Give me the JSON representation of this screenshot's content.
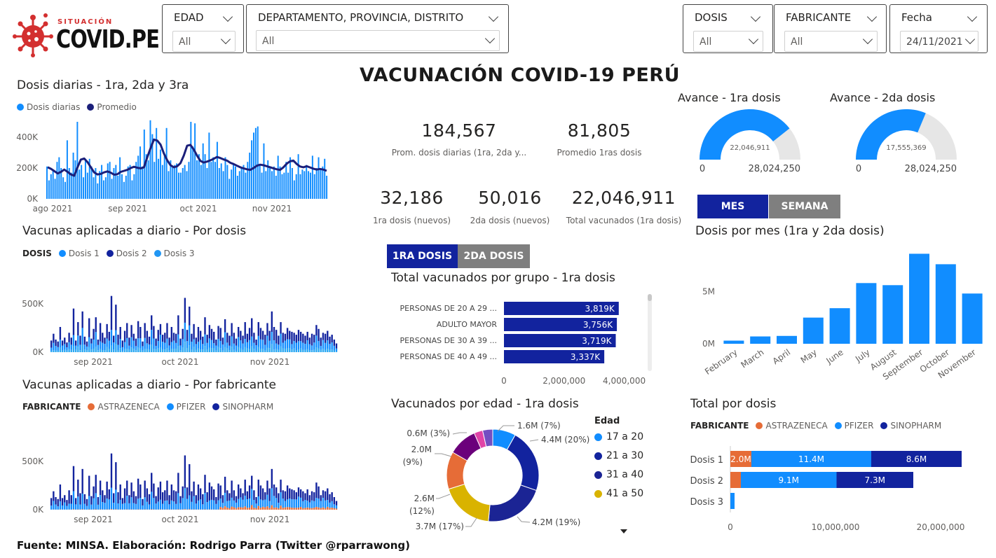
{
  "logo": {
    "small": "SITUACIÓN",
    "big": "COVID.PE"
  },
  "slicers": {
    "edad": {
      "title": "EDAD",
      "value": "All"
    },
    "ubicacion": {
      "title": "DEPARTAMENTO, PROVINCIA, DISTRITO",
      "value": "All"
    },
    "dosis": {
      "title": "DOSIS",
      "value": "All"
    },
    "fabricante": {
      "title": "FABRICANTE",
      "value": "All"
    },
    "fecha": {
      "title": "Fecha",
      "value": "24/11/2021"
    }
  },
  "main_title": "VACUNACIÓN COVID-19 PERÚ",
  "kpis": {
    "prom_dosis": {
      "value": "184,567",
      "label": "Prom. dosis diarias (1ra, 2da y..."
    },
    "prom_1ras": {
      "value": "81,805",
      "label": "Promedio 1ras dosis"
    },
    "primera_nuevos": {
      "value": "32,186",
      "label": "1ra dosis (nuevos)"
    },
    "segunda_nuevos": {
      "value": "50,016",
      "label": "2da dosis (nuevos)"
    },
    "total_vacunados": {
      "value": "22,046,911",
      "label": "Total vacunados (1ra dosis)"
    }
  },
  "gauges": {
    "primera": {
      "title": "Avance - 1ra dosis",
      "value": "22,046,911",
      "min": "0",
      "max": "28,024,250",
      "fraction": 0.787,
      "color": "#118DFF"
    },
    "segunda": {
      "title": "Avance - 2da dosis",
      "value": "17,555,369",
      "min": "0",
      "max": "28,024,250",
      "fraction": 0.626,
      "color": "#118DFF"
    }
  },
  "toggles": {
    "mes": "MES",
    "semana": "SEMANA",
    "primera": "1RA DOSIS",
    "segunda": "2DA DOSIS"
  },
  "colors": {
    "light_blue": "#118DFF",
    "dark_blue": "#12239E",
    "navy": "#1B1F7A",
    "orange": "#E66C37",
    "purple": "#6B007B",
    "magenta": "#E044A7",
    "violet": "#744EC2",
    "yellow": "#D9B300",
    "dark_brown": "#5A2D2D",
    "gray_btn": "#7F7F7F",
    "sky": "#2196F3"
  },
  "footer": "Fuente: MINSA. Elaboración: Rodrigo Parra (Twitter @rparrawong)",
  "chart_data": [
    {
      "id": "dosis_diarias",
      "type": "bar",
      "title": "Dosis diarias - 1ra, 2da y 3ra",
      "legend": [
        "Dosis diarias",
        "Promedio"
      ],
      "x_ticks": [
        "ago 2021",
        "sep 2021",
        "oct 2021",
        "nov 2021"
      ],
      "y_ticks": [
        "0K",
        "200K",
        "400K"
      ],
      "ylim": [
        0,
        500000
      ],
      "values": [
        210000,
        120000,
        160000,
        190000,
        130000,
        240000,
        270000,
        200000,
        140000,
        110000,
        380000,
        200000,
        170000,
        300000,
        250000,
        500000,
        190000,
        220000,
        140000,
        260000,
        170000,
        260000,
        210000,
        140000,
        200000,
        100000,
        180000,
        220000,
        120000,
        140000,
        230000,
        240000,
        130000,
        200000,
        220000,
        150000,
        270000,
        160000,
        110000,
        150000,
        210000,
        220000,
        120000,
        160000,
        240000,
        280000,
        340000,
        210000,
        450000,
        290000,
        250000,
        510000,
        420000,
        240000,
        460000,
        260000,
        320000,
        220000,
        280000,
        460000,
        180000,
        250000,
        210000,
        220000,
        230000,
        170000,
        170000,
        200000,
        220000,
        180000,
        240000,
        500000,
        340000,
        490000,
        250000,
        290000,
        220000,
        360000,
        290000,
        200000,
        430000,
        240000,
        270000,
        240000,
        370000,
        200000,
        230000,
        180000,
        270000,
        220000,
        130000,
        190000,
        230000,
        210000,
        150000,
        180000,
        200000,
        220000,
        170000,
        240000,
        300000,
        380000,
        430000,
        460000,
        470000,
        220000,
        170000,
        360000,
        180000,
        250000,
        200000,
        180000,
        210000,
        150000,
        280000,
        210000,
        160000,
        170000,
        240000,
        170000,
        270000,
        200000,
        120000,
        160000,
        290000,
        160000,
        190000,
        180000,
        220000,
        180000,
        170000,
        280000,
        160000,
        200000,
        270000,
        190000,
        210000,
        260000,
        150000
      ],
      "avg": [
        205000,
        195000,
        180000,
        165000,
        175000,
        190000,
        175000,
        158000,
        150000,
        205000,
        255000,
        262000,
        238000,
        205000,
        172000,
        158000,
        162000,
        172000,
        178000,
        170000,
        157000,
        160000,
        175000,
        182000,
        188000,
        200000,
        208000,
        202000,
        198000,
        205000,
        270000,
        330000,
        385000,
        378000,
        352000,
        295000,
        250000,
        218000,
        205000,
        212000,
        232000,
        282000,
        345000,
        350000,
        320000,
        280000,
        246000,
        236000,
        242000,
        250000,
        260000,
        272000,
        265000,
        256000,
        248000,
        234000,
        226000,
        215000,
        205000,
        198000,
        192000,
        188000,
        200000,
        215000,
        222000,
        218000,
        212000,
        205000,
        198000,
        192000,
        188000,
        205000,
        228000,
        244000,
        248000,
        226000,
        210000,
        205000,
        212000,
        204000,
        196000,
        190000,
        194000,
        190000,
        182000
      ]
    },
    {
      "id": "por_dosis",
      "type": "bar",
      "title": "Vacunas aplicadas a diario - Por dosis",
      "legend_header": "DOSIS",
      "series": [
        {
          "name": "Dosis 1"
        },
        {
          "name": "Dosis 2"
        },
        {
          "name": "Dosis 3"
        }
      ],
      "x_ticks": [
        "sep 2021",
        "oct 2021",
        "nov 2021"
      ],
      "y_ticks": [
        "0K",
        "500K"
      ],
      "ylim": [
        0,
        650000
      ],
      "totals": [
        120000,
        190000,
        130000,
        110000,
        260000,
        120000,
        150000,
        100000,
        200000,
        150000,
        450000,
        120000,
        310000,
        170000,
        420000,
        160000,
        110000,
        350000,
        140000,
        240000,
        360000,
        130000,
        300000,
        200000,
        150000,
        290000,
        210000,
        580000,
        170000,
        490000,
        180000,
        260000,
        120000,
        220000,
        300000,
        150000,
        280000,
        190000,
        140000,
        320000,
        260000,
        110000,
        300000,
        220000,
        160000,
        380000,
        270000,
        140000,
        230000,
        290000,
        180000,
        200000,
        300000,
        150000,
        260000,
        200000,
        190000,
        380000,
        140000,
        240000,
        560000,
        230000,
        470000,
        190000,
        290000,
        150000,
        260000,
        220000,
        160000,
        360000,
        180000,
        280000,
        240000,
        210000,
        130000,
        270000,
        250000,
        150000,
        340000,
        200000,
        170000,
        300000,
        200000,
        140000,
        260000,
        220000,
        170000,
        310000,
        190000,
        250000,
        350000,
        200000,
        130000,
        310000,
        250000,
        220000,
        180000,
        300000,
        220000,
        420000,
        260000,
        230000,
        170000,
        310000,
        200000,
        190000,
        250000,
        220000,
        210000,
        200000,
        180000,
        230000,
        210000,
        190000,
        170000,
        210000,
        150000,
        190000,
        180000,
        280000,
        240000,
        150000,
        200000,
        190000,
        220000,
        160000,
        180000,
        130000,
        90000
      ]
    },
    {
      "id": "por_fabricante",
      "type": "bar",
      "title": "Vacunas aplicadas a diario - Por fabricante",
      "legend_header": "FABRICANTE",
      "series": [
        {
          "name": "ASTRAZENECA"
        },
        {
          "name": "PFIZER"
        },
        {
          "name": "SINOPHARM"
        }
      ],
      "x_ticks": [
        "sep 2021",
        "oct 2021",
        "nov 2021"
      ],
      "y_ticks": [
        "0K",
        "500K"
      ],
      "ylim": [
        0,
        650000
      ]
    },
    {
      "id": "dosis_por_mes",
      "type": "bar",
      "title": "Dosis por mes (1ra y 2da dosis)",
      "categories": [
        "February",
        "March",
        "April",
        "May",
        "June",
        "July",
        "August",
        "September",
        "October",
        "November"
      ],
      "values": [
        300000,
        700000,
        750000,
        2500000,
        3400000,
        5800000,
        5600000,
        8600000,
        7600000,
        4800000
      ],
      "y_ticks": [
        "0M",
        "5M"
      ],
      "ylim": [
        0,
        9500000
      ]
    },
    {
      "id": "total_por_grupo",
      "type": "bar",
      "title": "Total vacunados por grupo - 1ra dosis",
      "categories": [
        "PERSONAS DE 20 A 29 ...",
        "ADULTO MAYOR",
        "PERSONAS DE 30 A 39 ...",
        "PERSONAS DE 40 A 49 ..."
      ],
      "values": [
        3819000,
        3756000,
        3719000,
        3337000
      ],
      "labels": [
        "3,819K",
        "3,756K",
        "3,719K",
        "3,337K"
      ],
      "x_ticks": [
        "0",
        "2,000,000",
        "4,000,000"
      ],
      "xlim": [
        0,
        4500000
      ]
    },
    {
      "id": "vacunados_por_edad",
      "type": "pie",
      "title": "Vacunados por edad - 1ra dosis",
      "legend_title": "Edad",
      "legend": [
        "17 a 20",
        "21 a 30",
        "31 a 40",
        "41 a 50"
      ],
      "slices": [
        {
          "value": 1.6,
          "label": "1.6M (7%)"
        },
        {
          "value": 4.4,
          "label": "4.4M (20%)"
        },
        {
          "value": 4.2,
          "label": "4.2M (19%)"
        },
        {
          "value": 3.7,
          "label": "3.7M (17%)"
        },
        {
          "value": 2.6,
          "label_a": "2.6M",
          "label_b": "(12%)"
        },
        {
          "value": 2.0,
          "label_a": "2.0M",
          "label_b": "(9%)"
        },
        {
          "value": 0.6,
          "label": "0.6M (3%)"
        },
        {
          "value": 0.7,
          "label": ""
        }
      ]
    },
    {
      "id": "total_por_dosis",
      "type": "bar",
      "title": "Total por dosis",
      "legend_header": "FABRICANTE",
      "series": [
        {
          "name": "ASTRAZENECA"
        },
        {
          "name": "PFIZER"
        },
        {
          "name": "SINOPHARM"
        }
      ],
      "categories": [
        "Dosis 1",
        "Dosis 2",
        "Dosis 3"
      ],
      "stacks": [
        {
          "astrazeneca": 2000000,
          "pfizer": 11400000,
          "sinopharm": 8600000,
          "labels": [
            "2.0M",
            "11.4M",
            "8.6M"
          ]
        },
        {
          "astrazeneca": 1000000,
          "pfizer": 9100000,
          "sinopharm": 7300000,
          "labels": [
            "",
            "9.1M",
            "7.3M"
          ]
        },
        {
          "astrazeneca": 0,
          "pfizer": 400000,
          "sinopharm": 0,
          "labels": [
            "",
            "",
            ""
          ]
        }
      ],
      "x_ticks": [
        "0",
        "10,000,000",
        "20,000,000"
      ],
      "xlim": [
        0,
        25000000
      ]
    }
  ]
}
